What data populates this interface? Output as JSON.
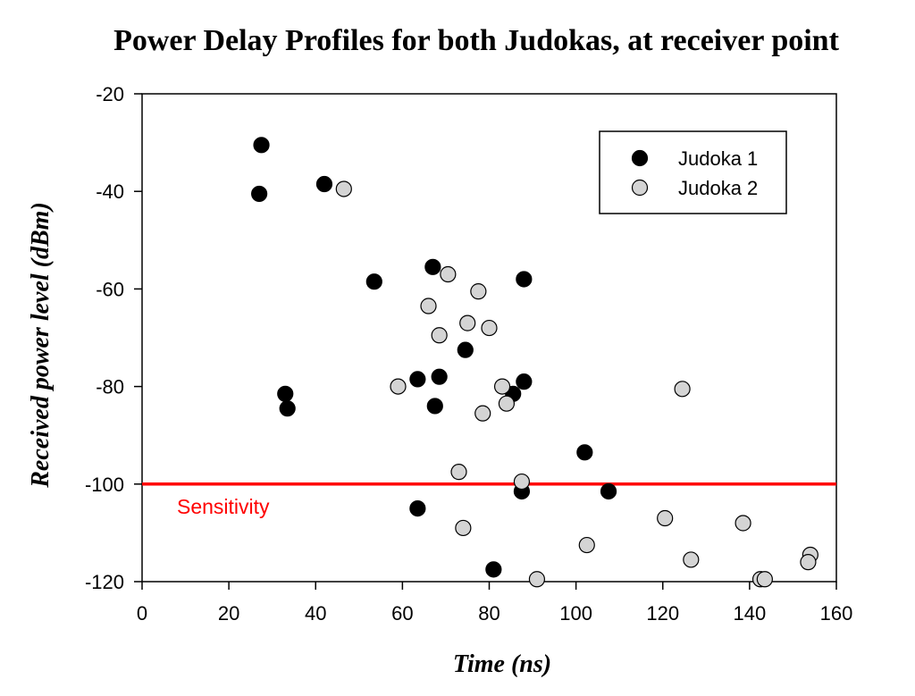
{
  "chart_data": {
    "type": "scatter",
    "title": "Power Delay Profiles for both Judokas, at receiver point",
    "xlabel": "Time (ns)",
    "ylabel": "Received power level (dBm)",
    "xlim": [
      0,
      160
    ],
    "ylim": [
      -120,
      -20
    ],
    "xticks": [
      0,
      20,
      40,
      60,
      80,
      100,
      120,
      140,
      160
    ],
    "yticks": [
      -20,
      -40,
      -60,
      -80,
      -100,
      -120
    ],
    "grid": false,
    "legend": {
      "position": "top-right"
    },
    "series": [
      {
        "name": "Judoka 1",
        "color": "#000000",
        "points": [
          [
            27.5,
            -30.5
          ],
          [
            27,
            -40.5
          ],
          [
            42,
            -38.5
          ],
          [
            53.5,
            -58.5
          ],
          [
            67,
            -55.5
          ],
          [
            88,
            -58
          ],
          [
            74.5,
            -72.5
          ],
          [
            33,
            -81.5
          ],
          [
            33.5,
            -84.5
          ],
          [
            63.5,
            -78.5
          ],
          [
            68.5,
            -78
          ],
          [
            67.5,
            -84
          ],
          [
            85.5,
            -81.5
          ],
          [
            88,
            -79
          ],
          [
            102,
            -93.5
          ],
          [
            87.5,
            -101.5
          ],
          [
            107.5,
            -101.5
          ],
          [
            63.5,
            -105
          ],
          [
            81,
            -117.5
          ]
        ]
      },
      {
        "name": "Judoka 2",
        "color": "#d4d4d4",
        "points": [
          [
            46.5,
            -39.5
          ],
          [
            70.5,
            -57
          ],
          [
            77.5,
            -60.5
          ],
          [
            66,
            -63.5
          ],
          [
            75,
            -67
          ],
          [
            80,
            -68
          ],
          [
            68.5,
            -69.5
          ],
          [
            59,
            -80
          ],
          [
            83,
            -80
          ],
          [
            84,
            -83.5
          ],
          [
            78.5,
            -85.5
          ],
          [
            124.5,
            -80.5
          ],
          [
            73,
            -97.5
          ],
          [
            87.5,
            -99.5
          ],
          [
            74,
            -109
          ],
          [
            120.5,
            -107
          ],
          [
            138.5,
            -108
          ],
          [
            102.5,
            -112.5
          ],
          [
            126.5,
            -115.5
          ],
          [
            154,
            -114.5
          ],
          [
            153.5,
            -116
          ],
          [
            91,
            -119.5
          ],
          [
            142.5,
            -119.5
          ],
          [
            143.5,
            -119.5
          ]
        ]
      }
    ],
    "reference_line": {
      "label": "Sensitivity",
      "y": -100,
      "color": "#ff0000"
    }
  }
}
